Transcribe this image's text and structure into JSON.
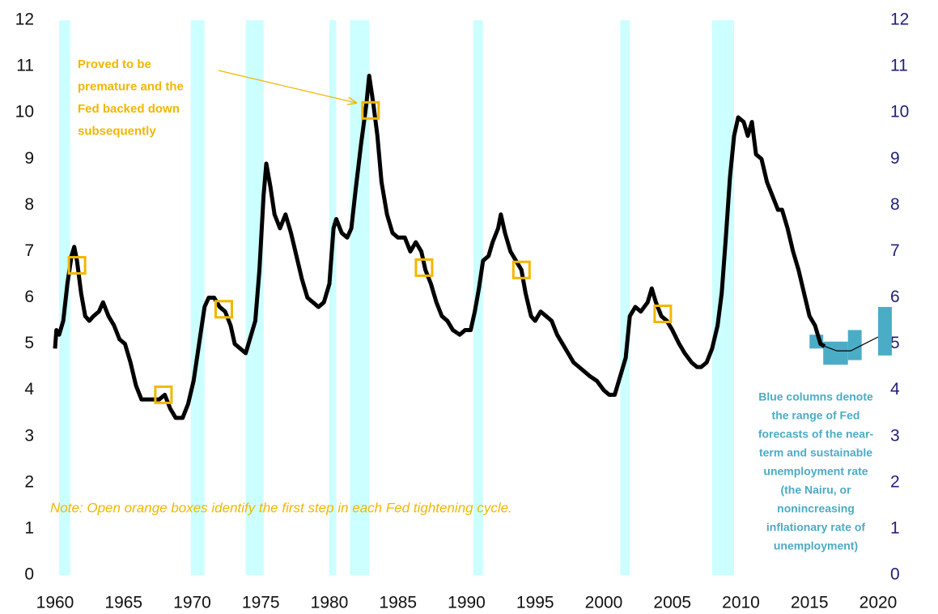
{
  "chart_data": {
    "type": "line",
    "xlim": [
      1960,
      2020
    ],
    "xticks": [
      1960,
      1965,
      1970,
      1975,
      1980,
      1985,
      1990,
      1995,
      2000,
      2005,
      2010,
      2015,
      2020
    ],
    "ylim": [
      0,
      12
    ],
    "yticks": [
      0,
      1,
      2,
      3,
      4,
      5,
      6,
      7,
      8,
      9,
      10,
      11,
      12
    ],
    "y2lim": [
      0,
      12
    ],
    "y2ticks": [
      0,
      1,
      2,
      3,
      4,
      5,
      6,
      7,
      8,
      9,
      10,
      11,
      12
    ],
    "x": [
      1960.0,
      1960.1,
      1960.3,
      1960.6,
      1960.9,
      1961.2,
      1961.4,
      1961.6,
      1961.9,
      1962.2,
      1962.5,
      1962.8,
      1963.2,
      1963.5,
      1963.9,
      1964.3,
      1964.7,
      1965.1,
      1965.5,
      1965.9,
      1966.3,
      1966.8,
      1967.2,
      1967.6,
      1968.0,
      1968.4,
      1968.8,
      1969.3,
      1969.7,
      1970.1,
      1970.5,
      1970.9,
      1971.2,
      1971.6,
      1972.0,
      1972.4,
      1972.8,
      1973.1,
      1973.5,
      1973.9,
      1974.2,
      1974.6,
      1974.9,
      1975.2,
      1975.4,
      1975.7,
      1976.0,
      1976.4,
      1976.8,
      1977.2,
      1977.6,
      1978.0,
      1978.4,
      1978.8,
      1979.2,
      1979.6,
      1980.0,
      1980.3,
      1980.5,
      1980.9,
      1981.3,
      1981.6,
      1981.9,
      1982.3,
      1982.7,
      1982.9,
      1983.2,
      1983.5,
      1983.8,
      1984.2,
      1984.6,
      1985.0,
      1985.5,
      1985.9,
      1986.3,
      1986.7,
      1987.0,
      1987.4,
      1987.8,
      1988.2,
      1988.6,
      1989.0,
      1989.5,
      1989.9,
      1990.3,
      1990.6,
      1990.9,
      1991.2,
      1991.6,
      1991.9,
      1992.3,
      1992.5,
      1992.8,
      1993.2,
      1993.6,
      1994.0,
      1994.3,
      1994.7,
      1995.0,
      1995.4,
      1995.8,
      1996.2,
      1996.6,
      1997.0,
      1997.4,
      1997.8,
      1998.2,
      1998.6,
      1999.0,
      1999.5,
      2000.0,
      2000.4,
      2000.8,
      2001.2,
      2001.6,
      2001.9,
      2002.3,
      2002.7,
      2003.2,
      2003.5,
      2003.8,
      2004.2,
      2004.6,
      2005.0,
      2005.5,
      2005.9,
      2006.4,
      2006.8,
      2007.1,
      2007.5,
      2007.9,
      2008.3,
      2008.6,
      2008.9,
      2009.2,
      2009.5,
      2009.8,
      2010.2,
      2010.5,
      2010.8,
      2011.1,
      2011.5,
      2011.9,
      2012.3,
      2012.7,
      2013.0,
      2013.4,
      2013.8,
      2014.2,
      2014.6,
      2015.0,
      2015.4,
      2015.8,
      2016.1
    ],
    "series": [
      {
        "color": "#000000",
        "values": [
          4.9,
          5.3,
          5.2,
          5.5,
          6.3,
          6.9,
          7.1,
          6.8,
          6.1,
          5.6,
          5.5,
          5.6,
          5.7,
          5.9,
          5.6,
          5.4,
          5.1,
          5.0,
          4.6,
          4.1,
          3.8,
          3.8,
          3.8,
          3.8,
          3.9,
          3.6,
          3.4,
          3.4,
          3.7,
          4.2,
          5.0,
          5.8,
          6.0,
          6.0,
          5.8,
          5.7,
          5.4,
          5.0,
          4.9,
          4.8,
          5.1,
          5.5,
          6.6,
          8.2,
          8.9,
          8.4,
          7.8,
          7.5,
          7.8,
          7.4,
          6.9,
          6.4,
          6.0,
          5.9,
          5.8,
          5.9,
          6.3,
          7.5,
          7.7,
          7.4,
          7.3,
          7.5,
          8.3,
          9.3,
          10.2,
          10.8,
          10.2,
          9.5,
          8.5,
          7.8,
          7.4,
          7.3,
          7.3,
          7.0,
          7.2,
          7.0,
          6.6,
          6.3,
          5.9,
          5.6,
          5.5,
          5.3,
          5.2,
          5.3,
          5.3,
          5.7,
          6.2,
          6.8,
          6.9,
          7.2,
          7.5,
          7.8,
          7.4,
          7.0,
          6.8,
          6.6,
          6.1,
          5.6,
          5.5,
          5.7,
          5.6,
          5.5,
          5.2,
          5.0,
          4.8,
          4.6,
          4.5,
          4.4,
          4.3,
          4.2,
          4.0,
          3.9,
          3.9,
          4.3,
          4.7,
          5.6,
          5.8,
          5.7,
          5.9,
          6.2,
          5.9,
          5.6,
          5.5,
          5.3,
          5.0,
          4.8,
          4.6,
          4.5,
          4.5,
          4.6,
          4.9,
          5.4,
          6.1,
          7.3,
          8.6,
          9.5,
          9.9,
          9.8,
          9.5,
          9.8,
          9.1,
          9.0,
          8.5,
          8.2,
          7.9,
          7.9,
          7.5,
          7.0,
          6.6,
          6.1,
          5.6,
          5.4,
          5.0,
          4.95
        ]
      }
    ],
    "forecast_line": {
      "color": "#000000",
      "x": [
        2016.1,
        2017,
        2018,
        2019,
        2020
      ],
      "values": [
        4.95,
        4.85,
        4.85,
        5.0,
        5.15
      ]
    },
    "recession_color": "#ccffff",
    "recessions": [
      [
        1960.3,
        1961.1
      ],
      [
        1969.9,
        1970.9
      ],
      [
        1973.9,
        1975.2
      ],
      [
        1980.0,
        1980.5
      ],
      [
        1981.5,
        1982.9
      ],
      [
        1990.5,
        1991.2
      ],
      [
        2001.2,
        2001.9
      ],
      [
        2007.9,
        2009.5
      ]
    ],
    "box_color": "#f2b600",
    "tightening_x": [
      1961.6,
      1967.9,
      1972.3,
      1983.0,
      1986.9,
      1994.0,
      2004.3
    ],
    "tightening_values": [
      6.7,
      3.9,
      5.75,
      10.05,
      6.65,
      6.6,
      5.65
    ],
    "forecast_color": "#4bacc6",
    "forecast_ranges": [
      {
        "x": [
          2015,
          2016
        ],
        "low": 4.9,
        "high": 5.2
      },
      {
        "x": [
          2016,
          2017.8
        ],
        "low": 4.55,
        "high": 5.05
      },
      {
        "x": [
          2017.8,
          2018.8
        ],
        "low": 4.65,
        "high": 5.3
      },
      {
        "x": [
          2020,
          2021
        ],
        "low": 4.75,
        "high": 5.8
      }
    ],
    "annotation_lines": [
      "Proved to be",
      "premature and the",
      "Fed backed down",
      "subsequently"
    ],
    "note": "Note: Open orange boxes identify the first step in each Fed tightening cycle.",
    "legend_lines": [
      "Blue columns denote",
      "the range of Fed",
      "forecasts of the near-",
      "term and sustainable",
      "unemployment rate",
      "(the Nairu, or",
      "nonincreasing",
      "inflationary rate of",
      "unemployment)"
    ]
  }
}
